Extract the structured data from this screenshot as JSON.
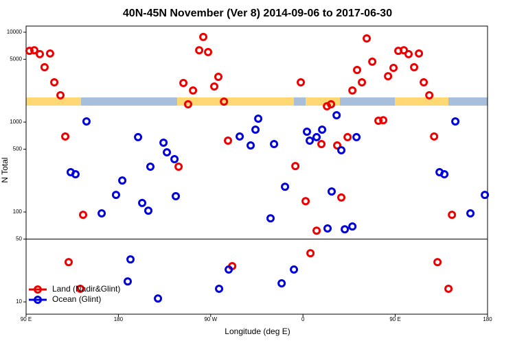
{
  "chart_data": {
    "type": "scatter",
    "title": "40N-45N November (Ver 8)   2014-09-06 to 2017-06-30",
    "x_label": "Longitude (deg E)",
    "y_label": "N Total",
    "log_y": true,
    "legend": "bottom-left",
    "divider": 50,
    "xlim": [
      90,
      540
    ],
    "ylim": [
      7.3,
      11700
    ],
    "xticks": [
      {
        "value": 90,
        "label": "90 E"
      },
      180,
      {
        "value": 270,
        "label": "90 W"
      },
      {
        "value": 360,
        "label": "0"
      },
      {
        "value": 450,
        "label": "90 E"
      },
      {
        "value": 540,
        "label": "180"
      }
    ],
    "yticks": [
      10,
      50,
      100,
      500,
      1000,
      5000,
      10000
    ],
    "series": [
      {
        "name": "Land (Nadir&Glint)",
        "color": "#ee0000",
        "x": [
          93.3,
          98,
          103.4,
          108,
          113.4,
          117.5,
          123.5,
          128.2,
          131.5,
          142.9,
          145.6,
          238.7,
          243.4,
          248,
          252.8,
          258.8,
          262.8,
          267.5,
          273.5,
          277.5,
          283,
          286.9,
          291,
          352.6,
          357.9,
          362.6,
          367.3,
          373.3,
          378,
          383.4,
          387.4,
          393.4,
          397.4,
          403.5,
          408.2,
          412.8,
          417.5,
          422.2,
          427.6,
          433.6,
          438.3,
          443,
          448.3,
          453,
          458.4,
          463,
          468.4,
          473.1,
          477.8,
          483.2,
          487.9,
          491.2,
          501.9,
          505.3
        ],
        "values": [
          6200,
          6300,
          5700,
          4080,
          5800,
          2770,
          1990,
          692,
          27.7,
          14,
          93,
          319,
          2720,
          1580,
          2250,
          6300,
          8850,
          6010,
          2490,
          3190,
          1690,
          622,
          25,
          324,
          2770,
          132,
          34.8,
          62,
          570,
          1500,
          1580,
          550,
          145,
          680,
          2250,
          3800,
          2770,
          8530,
          4700,
          1035,
          1050,
          3240,
          4010,
          6200,
          6300,
          5700,
          4080,
          5800,
          2770,
          1990,
          692,
          27.7,
          14,
          93
        ]
      },
      {
        "name": "Ocean (Glint)",
        "color": "#0000dd",
        "x": [
          133.5,
          138.2,
          148.9,
          163.7,
          177.7,
          183.8,
          189.1,
          191.8,
          199.2,
          203.2,
          209.2,
          211.2,
          218.6,
          224,
          227.3,
          234.7,
          236,
          278.2,
          287.6,
          298.3,
          309,
          313.7,
          316.4,
          328.4,
          331.8,
          339.2,
          342.5,
          351.2,
          363.9,
          366.6,
          373.3,
          378.7,
          384,
          388,
          392.8,
          397.4,
          400.8,
          408.2,
          412.2,
          493.2,
          497.9,
          508.6,
          523.3,
          537.4
        ],
        "values": [
          277,
          263,
          1018,
          96.6,
          155,
          224,
          16.9,
          29.7,
          680,
          126,
          103.5,
          319,
          10.9,
          590,
          461,
          387,
          150,
          14,
          22.9,
          692,
          550,
          824,
          1092,
          85,
          570,
          16.1,
          191,
          22.9,
          782,
          622,
          680,
          824,
          65.6,
          169,
          1192,
          486,
          64.2,
          69,
          680,
          277,
          263,
          1018,
          96.6,
          155
        ]
      }
    ]
  }
}
